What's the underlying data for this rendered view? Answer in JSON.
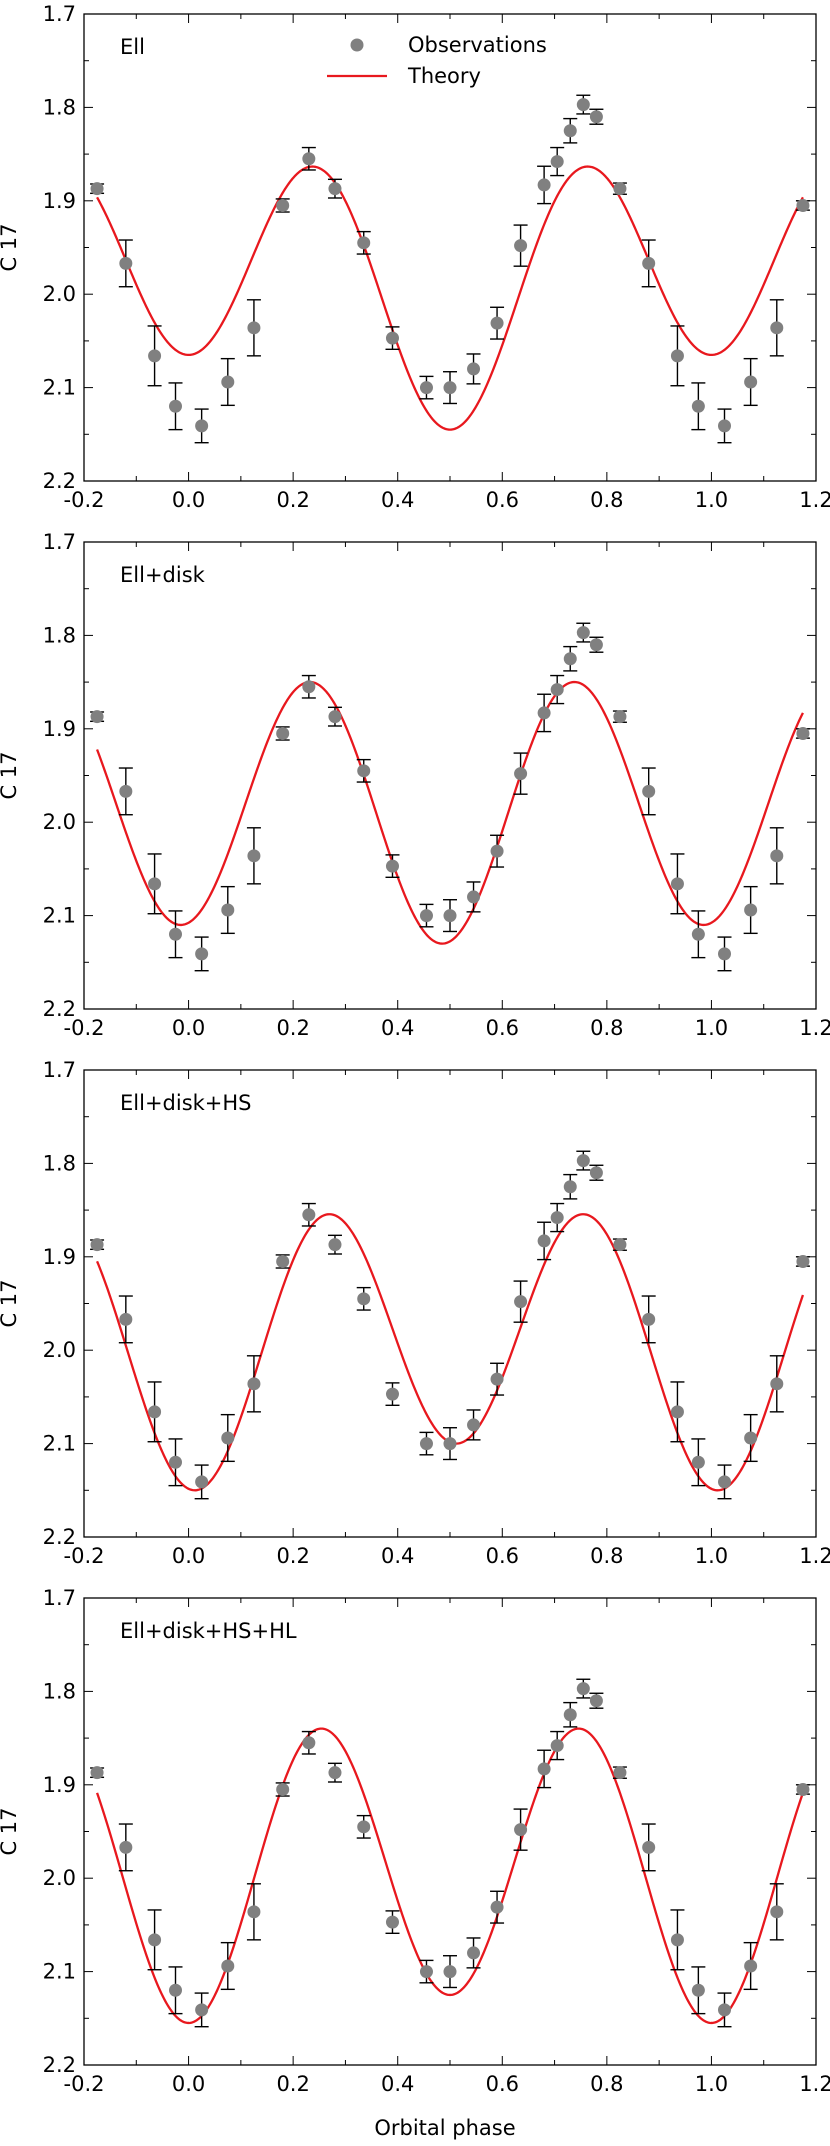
{
  "chart_data": [
    {
      "type": "scatter",
      "label": "Ell",
      "xlabel": "",
      "ylabel": "C 17",
      "xlim": [
        -0.2,
        1.2
      ],
      "ylim": [
        2.2,
        1.7
      ],
      "y_inverted": true,
      "xticks": [
        "-0.2",
        "0.0",
        "0.2",
        "0.4",
        "0.6",
        "0.8",
        "1.0",
        "1.2"
      ],
      "yticks": [
        "1.7",
        "1.8",
        "1.9",
        "2.0",
        "2.1",
        "2.2"
      ],
      "legend": {
        "placement": "top-center",
        "entries": [
          "Observations",
          "Theory"
        ]
      },
      "series": [
        {
          "name": "Observations",
          "kind": "points",
          "color": "#808080"
        },
        {
          "name": "Theory",
          "kind": "line",
          "color": "#e8181e",
          "shape": {
            "mean": 1.985,
            "a1": -0.04,
            "a2": 0.12,
            "phase": 0.0
          }
        }
      ]
    },
    {
      "type": "scatter",
      "label": "Ell+disk",
      "xlabel": "",
      "ylabel": "C 17",
      "xlim": [
        -0.2,
        1.2
      ],
      "ylim": [
        2.2,
        1.7
      ],
      "y_inverted": true,
      "xticks": [
        "-0.2",
        "0.0",
        "0.2",
        "0.4",
        "0.6",
        "0.8",
        "1.0",
        "1.2"
      ],
      "yticks": [
        "1.7",
        "1.8",
        "1.9",
        "2.0",
        "2.1",
        "2.2"
      ],
      "series": [
        {
          "name": "Observations",
          "kind": "points",
          "color": "#808080"
        },
        {
          "name": "Theory",
          "kind": "line",
          "color": "#e8181e",
          "shape": {
            "mean": 1.985,
            "a1": -0.01,
            "a2": 0.135,
            "phase": -0.015
          }
        }
      ]
    },
    {
      "type": "scatter",
      "label": "Ell+disk+HS",
      "xlabel": "",
      "ylabel": "C 17",
      "xlim": [
        -0.2,
        1.2
      ],
      "ylim": [
        2.2,
        1.7
      ],
      "y_inverted": true,
      "xticks": [
        "-0.2",
        "0.0",
        "0.2",
        "0.4",
        "0.6",
        "0.8",
        "1.0",
        "1.2"
      ],
      "yticks": [
        "1.7",
        "1.8",
        "1.9",
        "2.0",
        "2.1",
        "2.2"
      ],
      "series": [
        {
          "name": "Observations",
          "kind": "points",
          "color": "#808080"
        },
        {
          "name": "Theory",
          "kind": "line",
          "color": "#e8181e",
          "shape": {
            "mean": 1.99,
            "a1": 0.025,
            "a2": 0.135,
            "phase": 0.012
          }
        }
      ]
    },
    {
      "type": "scatter",
      "label": "Ell+disk+HS+HL",
      "xlabel": "Orbital phase",
      "ylabel": "C 17",
      "xlim": [
        -0.2,
        1.2
      ],
      "ylim": [
        2.2,
        1.7
      ],
      "y_inverted": true,
      "xticks": [
        "-0.2",
        "0.0",
        "0.2",
        "0.4",
        "0.6",
        "0.8",
        "1.0",
        "1.2"
      ],
      "yticks": [
        "1.7",
        "1.8",
        "1.9",
        "2.0",
        "2.1",
        "2.2"
      ],
      "series": [
        {
          "name": "Observations",
          "kind": "points",
          "color": "#808080"
        },
        {
          "name": "Theory",
          "kind": "line",
          "color": "#e8181e",
          "shape": {
            "mean": 1.99,
            "a1": 0.015,
            "a2": 0.15,
            "phase": 0.0
          }
        }
      ]
    }
  ],
  "observations": {
    "x": [
      -0.175,
      -0.12,
      -0.065,
      -0.025,
      0.025,
      0.075,
      0.125,
      0.18,
      0.23,
      0.28,
      0.335,
      0.39,
      0.455,
      0.5,
      0.545,
      0.59,
      0.635,
      0.68,
      0.705,
      0.73,
      0.755,
      0.78,
      0.825,
      0.88,
      0.935,
      0.975,
      1.025,
      1.075,
      1.125,
      1.175
    ],
    "y": [
      1.887,
      1.967,
      2.066,
      2.12,
      2.141,
      2.094,
      2.036,
      1.905,
      1.855,
      1.887,
      1.945,
      2.047,
      2.1,
      2.1,
      2.08,
      2.031,
      1.948,
      1.883,
      1.858,
      1.825,
      1.797,
      1.81,
      1.887,
      1.967,
      2.066,
      2.12,
      2.141,
      2.094,
      2.036,
      1.905
    ],
    "err": [
      0.005,
      0.025,
      0.032,
      0.025,
      0.018,
      0.025,
      0.03,
      0.007,
      0.012,
      0.01,
      0.012,
      0.012,
      0.012,
      0.017,
      0.016,
      0.017,
      0.022,
      0.02,
      0.015,
      0.013,
      0.01,
      0.008,
      0.006,
      0.025,
      0.032,
      0.025,
      0.018,
      0.025,
      0.03,
      0.005
    ]
  }
}
